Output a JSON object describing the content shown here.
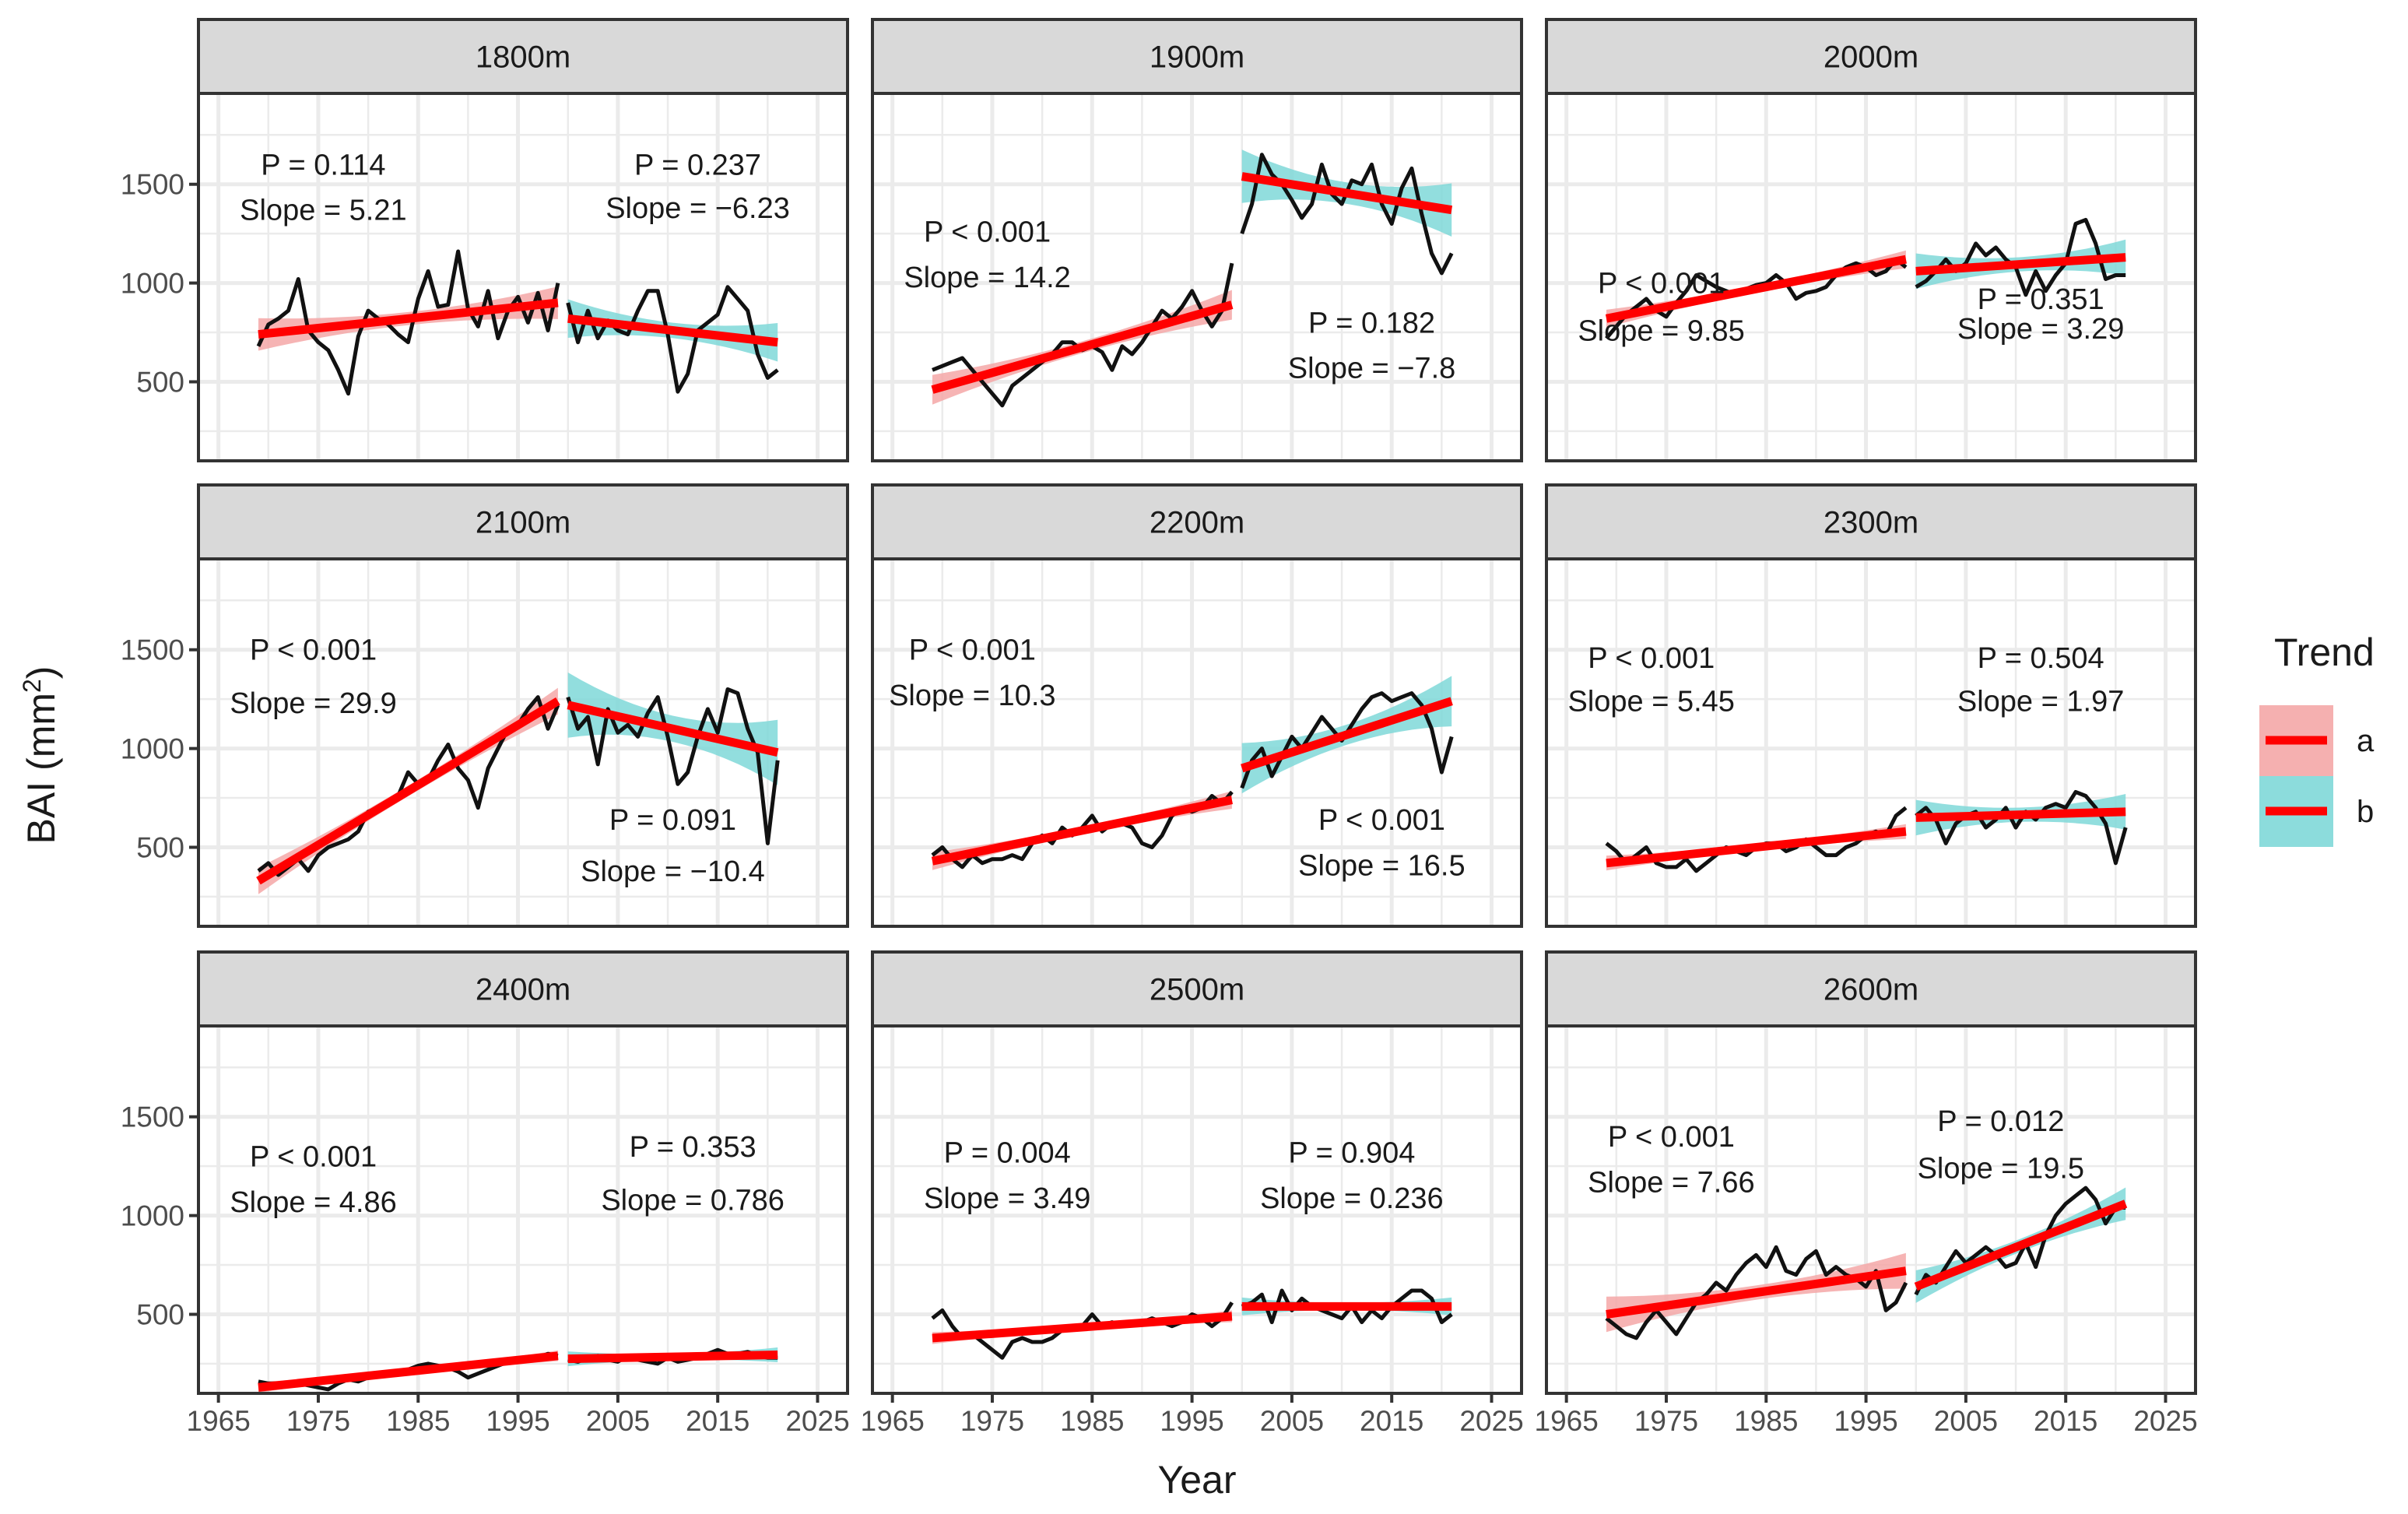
{
  "chart_data": {
    "type": "line",
    "layout": "facet-grid 3x3",
    "xlabel": "Year",
    "ylabel_main": "BAI (mm",
    "ylabel_sup": "2",
    "ylabel_close": ")",
    "xlim": [
      1963,
      2028
    ],
    "ylim": [
      100,
      1960
    ],
    "x_ticks": [
      1965,
      1975,
      1985,
      1995,
      2005,
      2015,
      2025
    ],
    "x_tick_labels": [
      "1965",
      "1975",
      "1985",
      "1995",
      "2005",
      "2015",
      "2025"
    ],
    "y_ticks": [
      500,
      1000,
      1500
    ],
    "y_tick_labels": [
      "500",
      "1000",
      "1500"
    ],
    "legend": {
      "title": "Trend",
      "position": "right",
      "items": [
        {
          "label": "a",
          "band_color": "#f4a7a7"
        },
        {
          "label": "b",
          "band_color": "#7fd8d8"
        }
      ]
    },
    "colors": {
      "fit": "#ff0000",
      "band_a": "#f4a7a7",
      "band_b": "#7fd8d8",
      "series": "#111111",
      "strip": "#d9d9d9",
      "grid": "#ebebeb"
    },
    "panels": [
      {
        "name": "1800m",
        "series_a": [
          680,
          790,
          820,
          860,
          1020,
          760,
          700,
          660,
          560,
          440,
          730,
          860,
          820,
          790,
          740,
          700,
          920,
          1060,
          880,
          890,
          1160,
          870,
          780,
          960,
          720,
          860,
          930,
          800,
          950,
          760,
          1000
        ],
        "series_b": [
          900,
          700,
          860,
          720,
          810,
          760,
          740,
          860,
          960,
          960,
          740,
          450,
          540,
          760,
          800,
          840,
          980,
          920,
          860,
          640,
          520,
          560
        ],
        "trend_a": {
          "y0": 740,
          "y1": 900,
          "se": 55
        },
        "trend_b": {
          "y0": 820,
          "y1": 700,
          "se": 65
        },
        "annot_a": {
          "p": "P = 0.114",
          "slope": "Slope = 5.21",
          "x": 1975.5,
          "p_y": 1600,
          "s_y": 1370
        },
        "annot_b": {
          "p": "P = 0.237",
          "slope": "Slope = −6.23",
          "x": 2013,
          "p_y": 1600,
          "s_y": 1380
        }
      },
      {
        "name": "1900m",
        "series_a": [
          560,
          580,
          600,
          620,
          560,
          500,
          440,
          380,
          480,
          520,
          560,
          600,
          640,
          700,
          700,
          660,
          680,
          650,
          560,
          680,
          640,
          700,
          780,
          860,
          820,
          880,
          960,
          860,
          780,
          860,
          1100
        ],
        "series_b": [
          1250,
          1400,
          1650,
          1550,
          1500,
          1420,
          1330,
          1400,
          1600,
          1450,
          1400,
          1520,
          1500,
          1600,
          1400,
          1300,
          1480,
          1580,
          1350,
          1150,
          1050,
          1150
        ],
        "trend_a": {
          "y0": 460,
          "y1": 890,
          "se": 50
        },
        "trend_b": {
          "y0": 1540,
          "y1": 1370,
          "se": 90
        },
        "annot_a": {
          "p": "P < 0.001",
          "slope": "Slope = 14.2",
          "x": 1974.5,
          "p_y": 1260,
          "s_y": 1030
        },
        "annot_b": {
          "p": "P = 0.182",
          "slope": "Slope = −7.8",
          "x": 2013,
          "p_y": 800,
          "s_y": 570
        }
      },
      {
        "name": "2000m",
        "series_a": [
          720,
          780,
          840,
          880,
          920,
          860,
          830,
          900,
          960,
          1040,
          1010,
          980,
          960,
          940,
          970,
          990,
          1000,
          1040,
          1000,
          920,
          950,
          960,
          980,
          1040,
          1080,
          1100,
          1080,
          1040,
          1060,
          1120,
          1080
        ],
        "series_b": [
          980,
          1010,
          1060,
          1120,
          1060,
          1100,
          1200,
          1140,
          1180,
          1120,
          1080,
          940,
          1060,
          960,
          1040,
          1100,
          1300,
          1320,
          1200,
          1020,
          1040,
          1040
        ],
        "trend_a": {
          "y0": 820,
          "y1": 1120,
          "se": 30
        },
        "trend_b": {
          "y0": 1060,
          "y1": 1130,
          "se": 60
        },
        "annot_a": {
          "p": "P < 0.001",
          "slope": "Slope = 9.85",
          "x": 1974.5,
          "p_y": 1000,
          "s_y": 760
        },
        "annot_b": {
          "p": "P = 0.351",
          "slope": "Slope = 3.29",
          "x": 2012.5,
          "p_y": 920,
          "s_y": 770
        }
      },
      {
        "name": "2100m",
        "series_a": [
          380,
          420,
          360,
          400,
          440,
          380,
          460,
          500,
          520,
          540,
          580,
          680,
          700,
          720,
          760,
          880,
          820,
          840,
          940,
          1020,
          900,
          840,
          700,
          900,
          1000,
          1100,
          1120,
          1200,
          1260,
          1100,
          1220
        ],
        "series_b": [
          1260,
          1100,
          1160,
          920,
          1200,
          1080,
          1120,
          1060,
          1180,
          1260,
          1060,
          820,
          880,
          1060,
          1200,
          1080,
          1300,
          1280,
          1100,
          980,
          520,
          940
        ],
        "trend_a": {
          "y0": 330,
          "y1": 1240,
          "se": 45
        },
        "trend_b": {
          "y0": 1220,
          "y1": 980,
          "se": 110
        },
        "annot_a": {
          "p": "P < 0.001",
          "slope": "Slope = 29.9",
          "x": 1974.5,
          "p_y": 1500,
          "s_y": 1230
        },
        "annot_b": {
          "p": "P = 0.091",
          "slope": "Slope = −10.4",
          "x": 2010.5,
          "p_y": 640,
          "s_y": 380
        }
      },
      {
        "name": "2200m",
        "series_a": [
          460,
          500,
          440,
          400,
          460,
          420,
          440,
          440,
          460,
          440,
          520,
          560,
          520,
          600,
          560,
          600,
          660,
          580,
          620,
          620,
          600,
          520,
          500,
          560,
          660,
          700,
          680,
          700,
          760,
          720,
          780
        ],
        "series_b": [
          800,
          940,
          1000,
          860,
          960,
          1060,
          1000,
          1080,
          1160,
          1100,
          1040,
          1120,
          1200,
          1260,
          1280,
          1240,
          1260,
          1280,
          1220,
          1100,
          880,
          1060
        ],
        "trend_a": {
          "y0": 430,
          "y1": 740,
          "se": 30
        },
        "trend_b": {
          "y0": 900,
          "y1": 1240,
          "se": 85
        },
        "annot_a": {
          "p": "P < 0.001",
          "slope": "Slope = 10.3",
          "x": 1973,
          "p_y": 1500,
          "s_y": 1270
        },
        "annot_b": {
          "p": "P < 0.001",
          "slope": "Slope = 16.5",
          "x": 2014,
          "p_y": 640,
          "s_y": 410
        }
      },
      {
        "name": "2300m",
        "series_a": [
          520,
          480,
          420,
          460,
          500,
          420,
          400,
          400,
          440,
          380,
          420,
          460,
          500,
          480,
          460,
          500,
          520,
          520,
          480,
          500,
          540,
          500,
          460,
          460,
          500,
          520,
          560,
          580,
          560,
          660,
          700
        ],
        "series_b": [
          660,
          700,
          640,
          520,
          620,
          660,
          680,
          600,
          640,
          700,
          600,
          680,
          640,
          700,
          720,
          700,
          780,
          760,
          700,
          620,
          420,
          600
        ],
        "trend_a": {
          "y0": 420,
          "y1": 580,
          "se": 25
        },
        "trend_b": {
          "y0": 650,
          "y1": 680,
          "se": 60
        },
        "annot_a": {
          "p": "P < 0.001",
          "slope": "Slope = 5.45",
          "x": 1973.5,
          "p_y": 1460,
          "s_y": 1240
        },
        "annot_b": {
          "p": "P = 0.504",
          "slope": "Slope = 1.97",
          "x": 2012.5,
          "p_y": 1460,
          "s_y": 1240
        }
      },
      {
        "name": "2400m",
        "series_a": [
          160,
          150,
          150,
          140,
          150,
          140,
          130,
          120,
          150,
          170,
          160,
          180,
          200,
          210,
          200,
          220,
          240,
          250,
          240,
          230,
          210,
          180,
          200,
          220,
          240,
          260,
          260,
          270,
          280,
          300,
          290
        ],
        "series_b": [
          270,
          260,
          280,
          290,
          270,
          260,
          290,
          270,
          260,
          250,
          280,
          260,
          270,
          280,
          300,
          320,
          300,
          300,
          310,
          290,
          280,
          280
        ],
        "trend_a": {
          "y0": 130,
          "y1": 290,
          "se": 18
        },
        "trend_b": {
          "y0": 275,
          "y1": 295,
          "se": 25
        },
        "annot_a": {
          "p": "P < 0.001",
          "slope": "Slope = 4.86",
          "x": 1974.5,
          "p_y": 1300,
          "s_y": 1070
        },
        "annot_b": {
          "p": "P = 0.353",
          "slope": "Slope = 0.786",
          "x": 2012.5,
          "p_y": 1350,
          "s_y": 1080
        }
      },
      {
        "name": "2500m",
        "series_a": [
          480,
          520,
          440,
          380,
          400,
          360,
          320,
          280,
          360,
          380,
          360,
          360,
          380,
          420,
          440,
          440,
          500,
          440,
          460,
          440,
          460,
          460,
          480,
          460,
          440,
          460,
          500,
          480,
          440,
          480,
          560
        ],
        "series_b": [
          540,
          560,
          600,
          460,
          620,
          520,
          580,
          540,
          520,
          500,
          480,
          540,
          460,
          520,
          480,
          540,
          580,
          620,
          620,
          580,
          460,
          500
        ],
        "trend_a": {
          "y0": 380,
          "y1": 490,
          "se": 20
        },
        "trend_b": {
          "y0": 540,
          "y1": 540,
          "se": 30
        },
        "annot_a": {
          "p": "P = 0.004",
          "slope": "Slope = 3.49",
          "x": 1976.5,
          "p_y": 1320,
          "s_y": 1090
        },
        "annot_b": {
          "p": "P = 0.904",
          "slope": "Slope = 0.236",
          "x": 2011,
          "p_y": 1320,
          "s_y": 1090
        }
      },
      {
        "name": "2600m",
        "series_a": [
          480,
          440,
          400,
          380,
          460,
          520,
          460,
          400,
          480,
          560,
          600,
          660,
          620,
          700,
          760,
          800,
          740,
          840,
          720,
          700,
          780,
          820,
          700,
          740,
          700,
          680,
          640,
          720,
          520,
          560,
          660
        ],
        "series_b": [
          600,
          700,
          660,
          740,
          820,
          760,
          800,
          840,
          800,
          740,
          760,
          860,
          740,
          900,
          1000,
          1060,
          1100,
          1140,
          1080,
          960,
          1040,
          1040
        ],
        "trend_a": {
          "y0": 500,
          "y1": 720,
          "se": 60
        },
        "trend_b": {
          "y0": 640,
          "y1": 1060,
          "se": 55
        },
        "annot_a": {
          "p": "P < 0.001",
          "slope": "Slope = 7.66",
          "x": 1975.5,
          "p_y": 1400,
          "s_y": 1170
        },
        "annot_b": {
          "p": "P = 0.012",
          "slope": "Slope = 19.5",
          "x": 2008.5,
          "p_y": 1480,
          "s_y": 1240
        }
      }
    ]
  }
}
